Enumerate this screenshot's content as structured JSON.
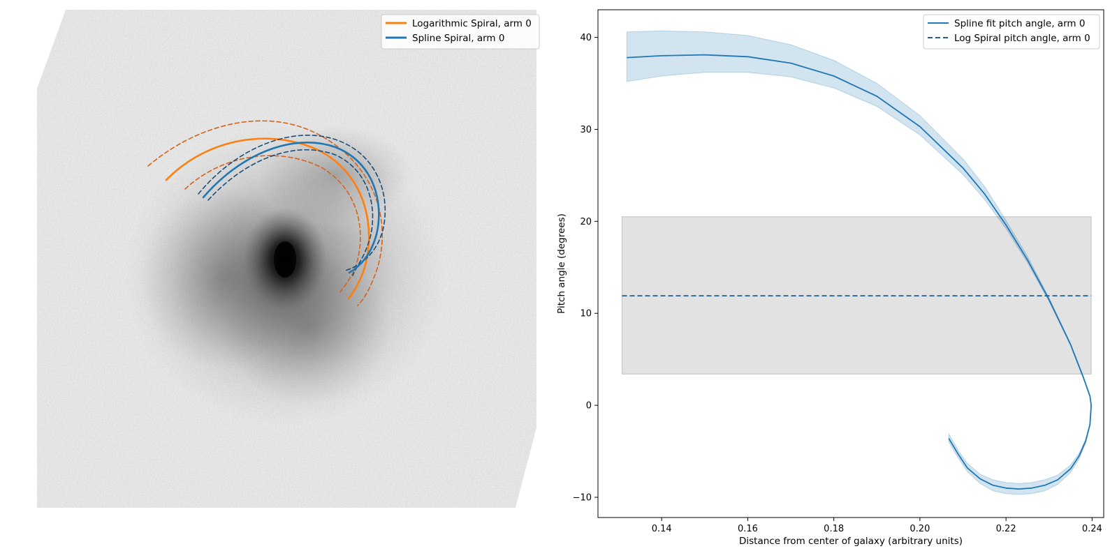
{
  "chart_data": [
    {
      "type": "image",
      "description_of_content": "galaxy",
      "legend": [
        {
          "label": "Logarithmic Spiral, arm 0",
          "color": "#ff7f0e",
          "style": "solid"
        },
        {
          "label": "Spline Spiral, arm 0",
          "color": "#1f77b4",
          "style": "solid"
        }
      ],
      "legend_position": "top-right",
      "colors": {
        "log_spiral": "#ff7f0e",
        "log_spiral_bounds": "#d4641c",
        "spline": "#1f77b4",
        "spline_bounds": "#1a4e7a"
      }
    },
    {
      "type": "line",
      "xlabel": "Distance from center of galaxy (arbitrary units)",
      "ylabel": "Pitch angle (degrees)",
      "xlim": [
        0.1252,
        0.2427
      ],
      "ylim": [
        -12.2,
        43.0
      ],
      "xticks": [
        0.14,
        0.16,
        0.18,
        0.2,
        0.22,
        0.24
      ],
      "xtick_labels": [
        "0.14",
        "0.16",
        "0.18",
        "0.20",
        "0.22",
        "0.24"
      ],
      "yticks": [
        -10,
        0,
        10,
        20,
        30,
        40
      ],
      "ytick_labels": [
        "−10",
        "0",
        "10",
        "20",
        "30",
        "40"
      ],
      "legend": [
        {
          "label": "Spline fit pitch angle, arm 0",
          "color": "#1f77b4",
          "style": "solid"
        },
        {
          "label": "Log Spiral pitch angle, arm 0",
          "color": "#1f5e94",
          "style": "dashed"
        }
      ],
      "legend_position": "top-right",
      "series": [
        {
          "name": "Spline fit pitch angle, arm 0",
          "color": "#1f77b4",
          "x": [
            0.1319,
            0.14,
            0.15,
            0.16,
            0.17,
            0.18,
            0.19,
            0.2,
            0.21,
            0.215,
            0.22,
            0.225,
            0.23,
            0.235,
            0.238,
            0.2395,
            0.2398,
            0.2395,
            0.2385,
            0.237,
            0.235,
            0.232,
            0.229,
            0.226,
            0.223,
            0.22,
            0.217,
            0.214,
            0.211,
            0.209,
            0.2067
          ],
          "y": [
            37.8,
            38.0,
            38.1,
            37.9,
            37.2,
            35.8,
            33.6,
            30.3,
            25.8,
            23.0,
            19.6,
            15.8,
            11.5,
            6.6,
            3.0,
            1.0,
            0.0,
            -2.1,
            -3.9,
            -5.5,
            -6.9,
            -8.1,
            -8.7,
            -9.0,
            -9.1,
            -9.0,
            -8.7,
            -8.0,
            -6.8,
            -5.4,
            -3.6
          ],
          "band_lower": [
            35.2,
            35.8,
            36.2,
            36.2,
            35.7,
            34.5,
            32.5,
            29.4,
            25.1,
            22.4,
            19.2,
            15.5,
            11.3,
            6.5,
            2.9,
            0.9,
            -0.1,
            -2.2,
            -4.1,
            -5.8,
            -7.3,
            -8.6,
            -9.3,
            -9.6,
            -9.7,
            -9.6,
            -9.3,
            -8.5,
            -7.2,
            -5.8,
            -4.0
          ],
          "band_upper": [
            40.6,
            40.7,
            40.6,
            40.2,
            39.2,
            37.5,
            35.0,
            31.5,
            26.8,
            23.8,
            20.1,
            16.2,
            11.7,
            6.7,
            3.1,
            1.1,
            0.1,
            -2.0,
            -3.7,
            -5.2,
            -6.5,
            -7.6,
            -8.1,
            -8.4,
            -8.5,
            -8.4,
            -8.1,
            -7.5,
            -6.3,
            -5.0,
            -3.1
          ]
        },
        {
          "name": "Log Spiral pitch angle, arm 0",
          "color": "#1f5e94",
          "style": "dashed",
          "x": [
            0.1308,
            0.2398
          ],
          "y": [
            11.9,
            11.9
          ],
          "band_lower": 3.4,
          "band_upper": 20.5
        }
      ]
    }
  ]
}
